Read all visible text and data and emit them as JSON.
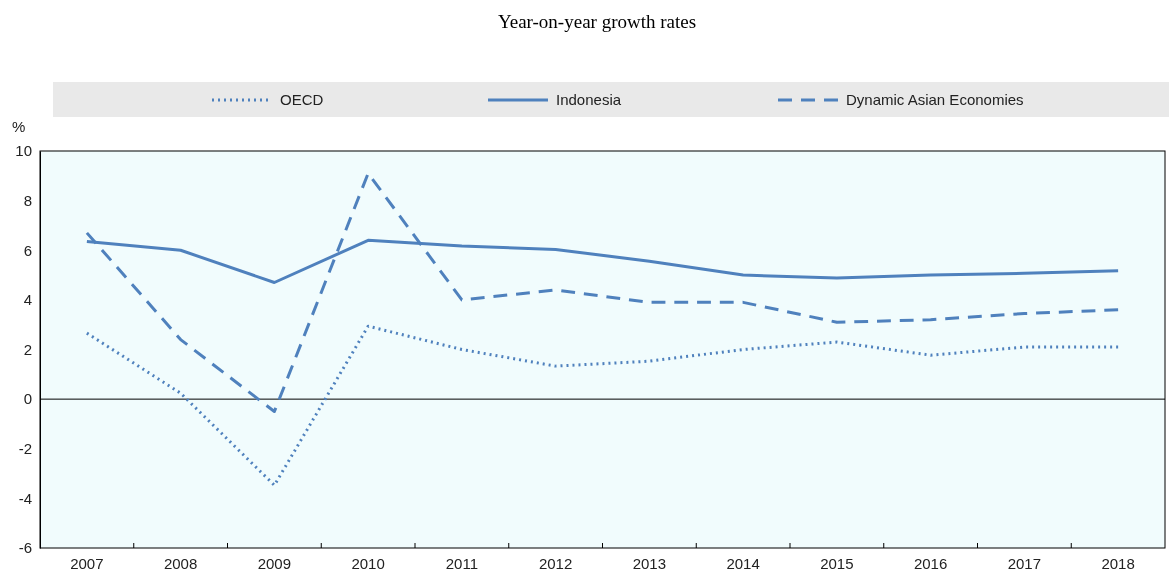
{
  "chart_data": {
    "type": "line",
    "title": "Year-on-year growth rates",
    "ylabel": "%",
    "categories": [
      "2007",
      "2008",
      "2009",
      "2010",
      "2011",
      "2012",
      "2013",
      "2014",
      "2015",
      "2016",
      "2017",
      "2018"
    ],
    "series": [
      {
        "name": "OECD",
        "color": "#4f81bd",
        "line_style": "dotted",
        "values": [
          2.66,
          0.24,
          -3.47,
          2.94,
          2.0,
          1.33,
          1.53,
          2.0,
          2.3,
          1.77,
          2.1,
          2.1
        ]
      },
      {
        "name": "Indonesia",
        "color": "#4f81bd",
        "line_style": "solid",
        "values": [
          6.35,
          6.0,
          4.7,
          6.4,
          6.17,
          6.03,
          5.56,
          5.0,
          4.88,
          5.0,
          5.07,
          5.17
        ]
      },
      {
        "name": "Dynamic Asian Economies",
        "color": "#4f81bd",
        "line_style": "dashed",
        "values": [
          6.7,
          2.4,
          -0.5,
          9.1,
          4.0,
          4.4,
          3.9,
          3.9,
          3.1,
          3.2,
          3.45,
          3.6
        ]
      }
    ],
    "ylim": [
      -6,
      10
    ],
    "yticks": [
      -6,
      -4,
      -2,
      0,
      2,
      4,
      6,
      8,
      10
    ],
    "grid": false,
    "ref_lines": [
      {
        "axis": "y",
        "value": 0,
        "color": "#000000"
      }
    ],
    "legend": "top",
    "marker": "none"
  }
}
